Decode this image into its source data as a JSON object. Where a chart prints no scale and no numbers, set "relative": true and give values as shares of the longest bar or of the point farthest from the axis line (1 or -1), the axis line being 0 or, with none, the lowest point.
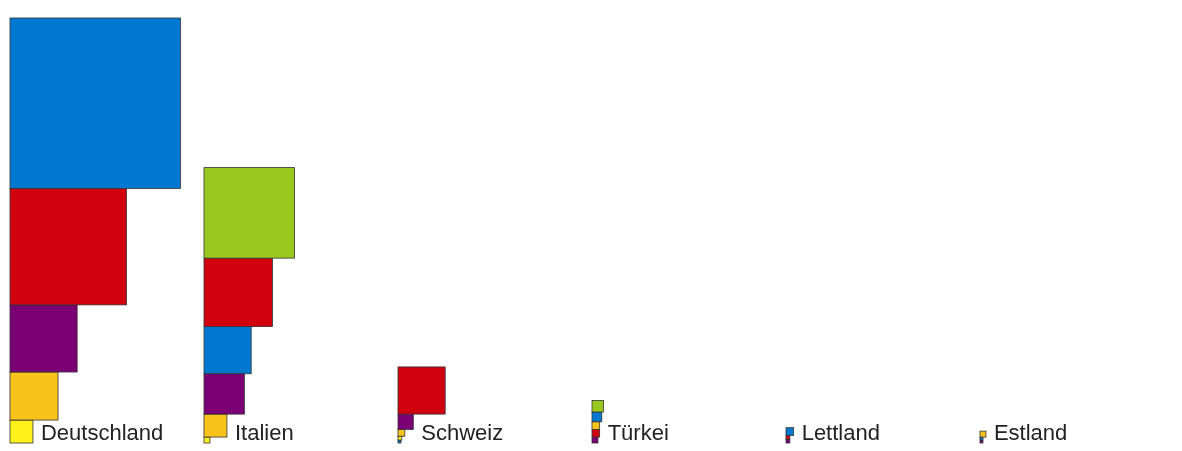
{
  "chart_data": {
    "type": "bar",
    "stacked": true,
    "relative": true,
    "categories": [
      "Deutschland",
      "Italien",
      "Schweiz",
      "Türkei",
      "Lettland",
      "Estland"
    ],
    "series": [
      {
        "values": [
          0.054,
          0.014,
          0.007,
          0.014,
          0.009,
          0.007
        ],
        "colors": [
          "#fff21a",
          "#fff21a",
          "#0078d0",
          "#7a0073",
          "#7a0073",
          "#7a0073"
        ]
      },
      {
        "values": [
          0.113,
          0.054,
          0.009,
          0.018,
          0.009,
          0.007
        ],
        "colors": [
          "#f8c31a",
          "#f8c31a",
          "#fff21a",
          "#d0000e",
          "#d0000e",
          "#0078d0"
        ]
      },
      {
        "values": [
          0.158,
          0.095,
          0.016,
          0.018,
          0.018,
          0.014
        ],
        "colors": [
          "#7a0073",
          "#7a0073",
          "#f8c31a",
          "#f8c31a",
          "#0078d0",
          "#f8c31a"
        ]
      },
      {
        "values": [
          0.274,
          0.111,
          0.036,
          0.023,
          null,
          null
        ],
        "colors": [
          "#d0000e",
          "#0078d0",
          "#7a0073",
          "#0078d0",
          null,
          null
        ]
      },
      {
        "values": [
          0.401,
          0.161,
          0.111,
          0.027,
          null,
          null
        ],
        "colors": [
          "#0078d0",
          "#d0000e",
          "#d0000e",
          "#9bc81e",
          null,
          null
        ]
      },
      {
        "values": [
          null,
          0.213,
          null,
          null,
          null,
          null
        ],
        "colors": [
          null,
          "#9bc81e",
          null,
          null,
          null,
          null
        ]
      }
    ]
  }
}
